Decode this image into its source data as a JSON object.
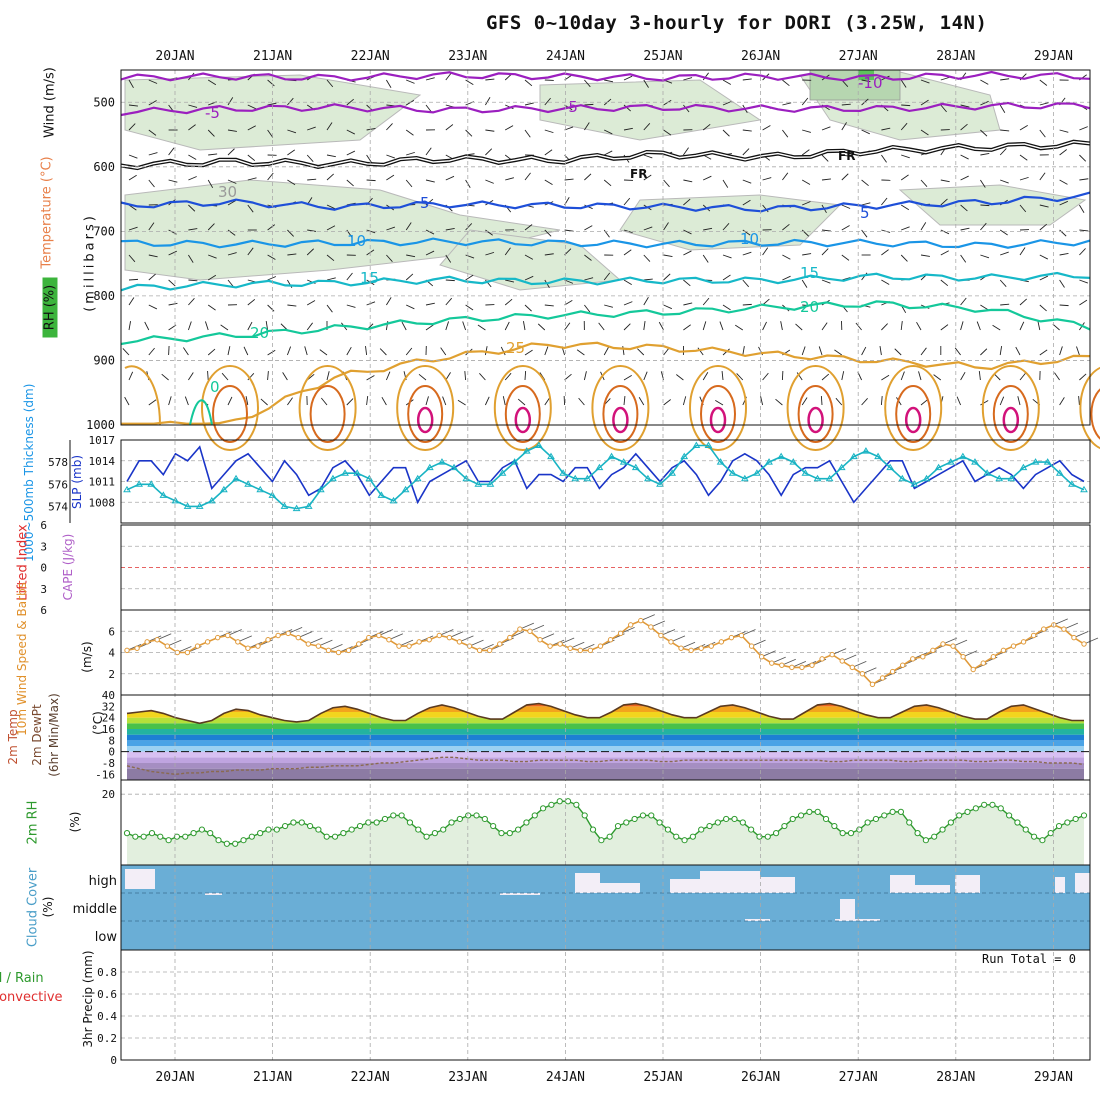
{
  "title": "GFS 0~10day 3-hourly for DORI (3.25W, 14N)",
  "dates": [
    "20JAN",
    "21JAN",
    "22JAN",
    "23JAN",
    "24JAN",
    "25JAN",
    "26JAN",
    "27JAN",
    "28JAN",
    "29JAN"
  ],
  "panel_labels": {
    "upper": {
      "wind": "Wind (m/s)",
      "temperature": "Temperature (°C)",
      "rh": "RH (%)",
      "millibars": "(millibars)"
    },
    "thickness": {
      "thickness": "1000~500mb Thickness (dm)",
      "slp": "SLP (mb)"
    },
    "stability": {
      "lifted_index": "Lifted Index",
      "cape": "CAPE (J/kg)"
    },
    "wind10m": {
      "main": "10m Wind Speed & Barbs",
      "unit": "(m/s)"
    },
    "temp": {
      "main": "2m Temp",
      "dewpt": "2m DewPt",
      "minmax": "(6hr Min/Max)",
      "unit": "(°C)"
    },
    "rh2m": {
      "main": "2m RH",
      "unit": "(%)"
    },
    "cloud": {
      "main": "Cloud Cover",
      "unit": "(%)"
    },
    "precip": {
      "main": "Total / Rain",
      "conv": "Convective",
      "axis": "3hr Precip (mm)"
    }
  },
  "run_total": "Run Total = 0",
  "colors": {
    "purple": "#9b1fbf",
    "black": "#111111",
    "blue": "#1e4fd8",
    "ltblue": "#1a95e6",
    "teal": "#16b8c8",
    "green": "#14c89a",
    "orange": "#e0a030",
    "darkorange": "#d76a1e",
    "magenta": "#d2127a",
    "rh_fill": "#dcebd6",
    "slp": "#1a35c8",
    "thick": "#18b3c3",
    "wind": "#e09a3a",
    "rh2m": "#2e9a2e",
    "cloud_bg": "#6aaed6",
    "cloud_clear": "#f3eef7",
    "grid": "#aaaaaa"
  },
  "chart_data": [
    {
      "panel": "upper-air",
      "type": "contour",
      "y_axis": {
        "label": "(millibars)",
        "ticks": [
          500,
          600,
          700,
          800,
          900,
          1000
        ],
        "ylim": [
          450,
          1000
        ]
      },
      "contour_labels": [
        {
          "value": "-10",
          "series": "temperature"
        },
        {
          "value": "-5",
          "series": "temperature"
        },
        {
          "value": "FR",
          "series": "freezing level"
        },
        {
          "value": "5",
          "series": "temperature"
        },
        {
          "value": "10",
          "series": "temperature"
        },
        {
          "value": "15",
          "series": "temperature"
        },
        {
          "value": "20",
          "series": "temperature"
        },
        {
          "value": "25",
          "series": "temperature"
        },
        {
          "value": "0",
          "series": "temperature"
        },
        {
          "value": "30",
          "series": "rh"
        }
      ],
      "temperature_levels": [
        {
          "value": -10,
          "pressure": [
            462,
            460,
            462,
            458,
            460,
            462,
            460,
            462,
            458,
            460
          ],
          "color": "purple"
        },
        {
          "value": -5,
          "pressure": [
            515,
            510,
            508,
            512,
            510,
            508,
            510,
            510,
            506,
            505
          ],
          "color": "purple"
        },
        {
          "value": 0,
          "pressure": [
            598,
            592,
            596,
            588,
            590,
            580,
            585,
            575,
            570,
            565
          ],
          "color": "black"
        },
        {
          "value": 5,
          "pressure": [
            660,
            655,
            662,
            658,
            660,
            662,
            665,
            660,
            655,
            645
          ],
          "color": "blue"
        },
        {
          "value": 10,
          "pressure": [
            718,
            720,
            718,
            716,
            718,
            720,
            718,
            718,
            722,
            716
          ],
          "color": "ltblue"
        },
        {
          "value": 15,
          "pressure": [
            788,
            782,
            780,
            775,
            778,
            776,
            776,
            770,
            772,
            768
          ],
          "color": "teal"
        },
        {
          "value": 20,
          "pressure": [
            870,
            862,
            850,
            838,
            830,
            826,
            818,
            812,
            820,
            848
          ],
          "color": "green"
        },
        {
          "value": 25,
          "pressure": [
            1000,
            1000,
            925,
            895,
            875,
            880,
            890,
            900,
            910,
            895
          ],
          "color": "orange"
        }
      ]
    },
    {
      "panel": "thickness-slp",
      "type": "line",
      "x_days": 10,
      "y_axes": [
        {
          "label": "1000~500mb Thickness (dm)",
          "ticks": [
            574,
            576,
            578
          ]
        },
        {
          "label": "SLP (mb)",
          "ticks": [
            1008,
            1011,
            1014,
            1017
          ]
        }
      ],
      "series": [
        {
          "name": "SLP (mb)",
          "color": "slp",
          "values": [
            1011,
            1014,
            1014,
            1012,
            1015,
            1014,
            1016,
            1010,
            1012,
            1014,
            1015,
            1013,
            1011,
            1014,
            1012,
            1009,
            1010,
            1013,
            1014,
            1012,
            1009,
            1011,
            1013,
            1013,
            1008,
            1011,
            1012,
            1013,
            1014,
            1011,
            1011,
            1013,
            1014,
            1010,
            1012,
            1012,
            1011,
            1013,
            1013,
            1010,
            1012,
            1013,
            1015,
            1013,
            1011,
            1013,
            1014,
            1012,
            1009,
            1011,
            1014,
            1015,
            1014,
            1012,
            1009,
            1012,
            1013,
            1013,
            1014,
            1011,
            1008,
            1010,
            1012,
            1014,
            1014,
            1010,
            1011,
            1012,
            1013,
            1014,
            1011,
            1012,
            1013,
            1012,
            1010,
            1012,
            1013,
            1014,
            1012,
            1011
          ]
        },
        {
          "name": "1000~500mb Thickness (dm)",
          "color": "thick",
          "values": [
            575.5,
            576.0,
            576.0,
            575.0,
            574.5,
            574.0,
            574.0,
            574.5,
            575.5,
            576.5,
            576.0,
            575.5,
            575.0,
            574.0,
            573.8,
            574.0,
            575.5,
            576.5,
            577.0,
            577.0,
            576.5,
            575.0,
            574.5,
            575.5,
            576.5,
            577.5,
            578.0,
            577.5,
            576.5,
            576.0,
            576.0,
            577.0,
            578.0,
            579.0,
            579.5,
            578.5,
            577.0,
            576.5,
            576.5,
            577.5,
            578.5,
            578.0,
            577.5,
            576.5,
            576.0,
            577.0,
            578.5,
            579.5,
            579.5,
            578.0,
            577.0,
            576.5,
            577.0,
            578.0,
            578.5,
            578.0,
            577.0,
            576.5,
            576.5,
            577.5,
            578.5,
            579.0,
            578.5,
            577.5,
            576.5,
            576.0,
            576.5,
            577.5,
            578.0,
            578.5,
            578.0,
            577.0,
            576.5,
            576.5,
            577.5,
            578.0,
            578.0,
            577.0,
            576.0,
            575.5
          ]
        }
      ]
    },
    {
      "panel": "stability",
      "type": "line",
      "y_axis": {
        "label": "Lifted Index / CAPE (J/kg)",
        "ticks": [
          6,
          3,
          0,
          3,
          6
        ]
      },
      "series": [
        {
          "name": "Lifted Index",
          "color": "#e03030",
          "values": [
            0
          ]
        }
      ]
    },
    {
      "panel": "wind10m",
      "type": "line",
      "y_axis": {
        "label": "10m Wind Speed & Barbs (m/s)",
        "ticks": [
          2,
          4,
          6
        ],
        "ylim": [
          0,
          8
        ]
      },
      "series": [
        {
          "name": "10m Wind Speed",
          "color": "wind",
          "values": [
            4.2,
            4.4,
            5.0,
            5.2,
            4.6,
            4.0,
            4.0,
            4.6,
            5.0,
            5.4,
            5.6,
            5.0,
            4.4,
            4.6,
            5.2,
            5.6,
            5.8,
            5.4,
            4.8,
            4.6,
            4.2,
            4.0,
            4.2,
            4.8,
            5.4,
            5.6,
            5.2,
            4.6,
            4.6,
            5.0,
            5.2,
            5.6,
            5.4,
            5.0,
            4.6,
            4.2,
            4.2,
            4.8,
            5.4,
            6.2,
            6.0,
            5.2,
            4.6,
            4.8,
            4.4,
            4.2,
            4.2,
            4.6,
            5.2,
            5.8,
            6.6,
            7.0,
            6.4,
            5.6,
            5.0,
            4.4,
            4.2,
            4.4,
            4.6,
            5.0,
            5.4,
            5.6,
            4.6,
            3.6,
            3.0,
            2.8,
            2.6,
            2.6,
            2.8,
            3.4,
            3.8,
            3.2,
            2.6,
            2.0,
            1.0,
            1.6,
            2.2,
            2.8,
            3.4,
            3.6,
            4.2,
            4.8,
            4.6,
            3.6,
            2.4,
            3.0,
            3.6,
            4.2,
            4.6,
            5.0,
            5.6,
            6.2,
            6.6,
            6.2,
            5.4,
            4.8
          ]
        }
      ]
    },
    {
      "panel": "temp2m",
      "type": "area",
      "y_axis": {
        "label": "(°C)",
        "ticks": [
          40,
          32,
          24,
          16,
          8,
          0,
          -8,
          -16
        ],
        "ylim": [
          -20,
          40
        ]
      },
      "series": [
        {
          "name": "2m Temp",
          "color": "#5a3a20",
          "values": [
            27,
            28,
            29,
            27,
            24,
            22,
            20,
            22,
            27,
            30,
            29,
            26,
            24,
            22,
            21,
            22,
            27,
            31,
            32,
            30,
            27,
            24,
            22,
            22,
            27,
            31,
            33,
            31,
            28,
            25,
            23,
            23,
            28,
            33,
            34,
            32,
            29,
            26,
            24,
            24,
            28,
            33,
            34,
            32,
            29,
            26,
            24,
            24,
            28,
            32,
            33,
            31,
            28,
            25,
            23,
            23,
            28,
            33,
            34,
            32,
            29,
            26,
            24,
            24,
            28,
            32,
            33,
            31,
            28,
            25,
            23,
            23,
            28,
            32,
            33,
            30,
            27,
            24,
            22,
            22
          ]
        },
        {
          "name": "2m DewPt",
          "color": "#8a6a50",
          "values": [
            -10,
            -12,
            -14,
            -15,
            -16,
            -15,
            -15,
            -14,
            -14,
            -13,
            -13,
            -13,
            -12,
            -12,
            -12,
            -11,
            -11,
            -10,
            -10,
            -10,
            -9,
            -8,
            -8,
            -7,
            -6,
            -5,
            -4,
            -4,
            -5,
            -6,
            -6,
            -6,
            -7,
            -7,
            -6,
            -6,
            -6,
            -6,
            -7,
            -7,
            -6,
            -6,
            -6,
            -6,
            -7,
            -7,
            -6,
            -6,
            -6,
            -6,
            -6,
            -6,
            -6,
            -6,
            -6,
            -6,
            -6,
            -6,
            -7,
            -7,
            -6,
            -6,
            -6,
            -6,
            -7,
            -7,
            -6,
            -6,
            -6,
            -6,
            -7,
            -7,
            -6,
            -6,
            -7,
            -7,
            -8,
            -8,
            -8,
            -9
          ]
        }
      ]
    },
    {
      "panel": "rh2m",
      "type": "line",
      "y_axis": {
        "label": "2m RH (%)",
        "ticks": [
          20
        ],
        "ylim": [
          0,
          24
        ]
      },
      "series": [
        {
          "name": "2m RH",
          "color": "rh2m",
          "values": [
            9,
            8,
            8,
            9,
            8,
            7,
            8,
            8,
            9,
            10,
            9,
            7,
            6,
            6,
            7,
            8,
            9,
            10,
            10,
            11,
            12,
            12,
            11,
            10,
            8,
            8,
            9,
            10,
            11,
            12,
            12,
            13,
            14,
            14,
            12,
            10,
            8,
            9,
            10,
            12,
            13,
            14,
            14,
            13,
            11,
            9,
            9,
            10,
            12,
            14,
            16,
            17,
            18,
            18,
            17,
            14,
            10,
            7,
            8,
            11,
            12,
            13,
            14,
            14,
            12,
            10,
            8,
            7,
            8,
            10,
            11,
            12,
            13,
            13,
            12,
            10,
            8,
            8,
            9,
            11,
            13,
            14,
            15,
            15,
            13,
            11,
            9,
            9,
            10,
            12,
            13,
            14,
            15,
            15,
            12,
            9,
            7,
            8,
            10,
            12,
            14,
            15,
            16,
            17,
            17,
            16,
            14,
            12,
            10,
            8,
            7,
            9,
            11,
            12,
            13,
            14
          ]
        }
      ]
    },
    {
      "panel": "cloud",
      "type": "heatmap",
      "layers": [
        "high",
        "middle",
        "low"
      ],
      "y_axis": {
        "label": "Cloud Cover (%)"
      }
    },
    {
      "panel": "precip",
      "type": "bar",
      "y_axis": {
        "label": "3hr Precip (mm)",
        "ticks": [
          0,
          0.2,
          0.4,
          0.6,
          0.8
        ],
        "ylim": [
          0,
          1
        ]
      },
      "series": [
        {
          "name": "Total / Rain",
          "color": "#2e9a2e",
          "values": []
        },
        {
          "name": "Convective",
          "color": "#e03030",
          "values": []
        }
      ]
    }
  ]
}
